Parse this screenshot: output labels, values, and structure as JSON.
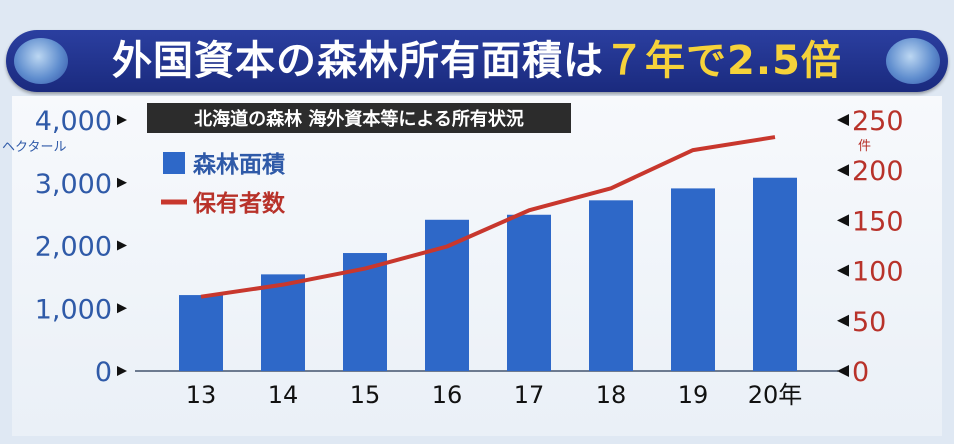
{
  "title": {
    "main": "外国資本の森林所有面積は",
    "highlight": "７年で2.5倍"
  },
  "chart_data": {
    "type": "bar",
    "subtitle": "北海道の森林 海外資本等による所有状況",
    "categories": [
      "13",
      "14",
      "15",
      "16",
      "17",
      "18",
      "19",
      "20年"
    ],
    "series": [
      {
        "name": "森林面積",
        "type": "bar",
        "axis": "left",
        "color": "#2e68c8",
        "values": [
          1210,
          1540,
          1880,
          2410,
          2490,
          2720,
          2910,
          3080
        ]
      },
      {
        "name": "保有者数",
        "type": "line",
        "axis": "right",
        "color": "#c8372d",
        "values": [
          74,
          86,
          102,
          124,
          160,
          182,
          220,
          233
        ]
      }
    ],
    "y_left": {
      "unit": "ヘクタール",
      "ylim": [
        0,
        4000
      ],
      "tick_labels": [
        "0",
        "1,000",
        "2,000",
        "3,000",
        "4,000"
      ],
      "color": "#2f5aa8"
    },
    "y_right": {
      "unit": "件",
      "ylim": [
        0,
        250
      ],
      "tick_labels": [
        "0",
        "50",
        "100",
        "150",
        "200",
        "250"
      ],
      "color": "#b8322a"
    },
    "legend": "top-left"
  }
}
